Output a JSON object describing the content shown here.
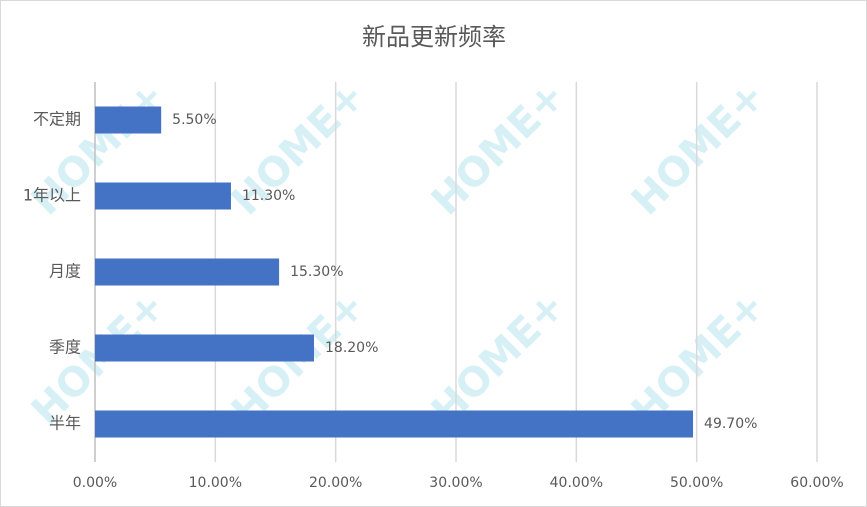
{
  "chart_data": {
    "type": "hbar",
    "title": "新品更新频率",
    "categories": [
      "不定期",
      "1年以上",
      "月度",
      "季度",
      "半年"
    ],
    "values": [
      5.5,
      11.3,
      15.3,
      18.2,
      49.7
    ],
    "value_labels": [
      "5.50%",
      "11.30%",
      "15.30%",
      "18.20%",
      "49.70%"
    ],
    "color": "#4472c4",
    "xlim": [
      0,
      60
    ],
    "xticks": [
      {
        "value": 0,
        "label": "0.00%"
      },
      {
        "value": 10,
        "label": "10.00%"
      },
      {
        "value": 20,
        "label": "20.00%"
      },
      {
        "value": 30,
        "label": "30.00%"
      },
      {
        "value": 40,
        "label": "40.00%"
      },
      {
        "value": 50,
        "label": "50.00%"
      },
      {
        "value": 60,
        "label": "60.00%"
      }
    ],
    "grid": true
  },
  "watermark": "HOME+"
}
